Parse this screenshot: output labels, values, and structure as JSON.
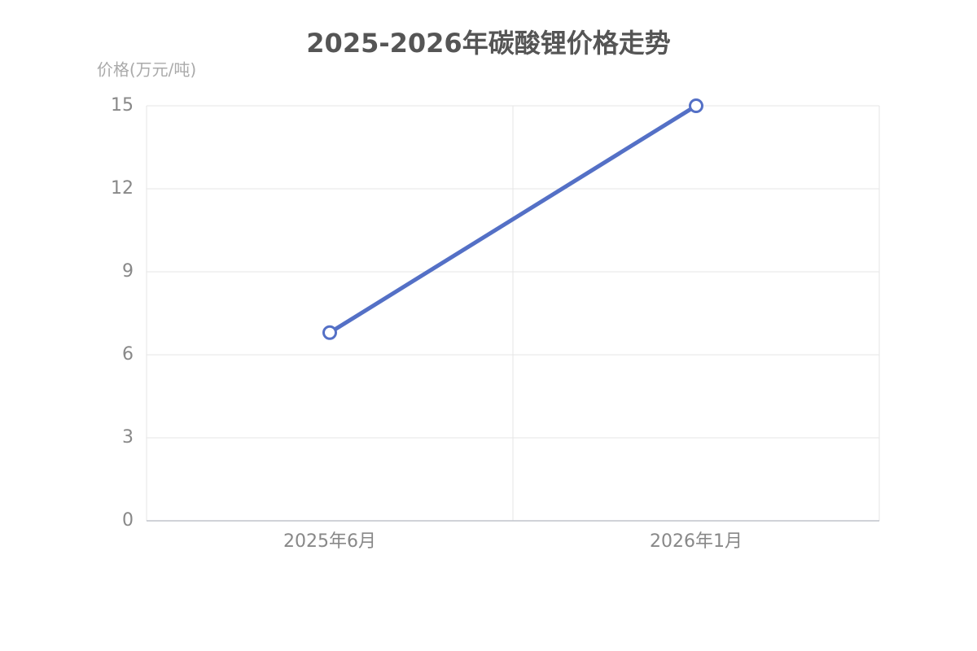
{
  "chart_data": {
    "type": "line",
    "title": "2025-2026年碳酸锂价格走势",
    "y_label": "价格(万元/吨)",
    "categories": [
      "2025年6月",
      "2026年1月"
    ],
    "values": [
      6.8,
      15
    ],
    "color": "#5470c6",
    "ylim": [
      0,
      15
    ],
    "yticks": [
      0,
      3,
      6,
      9,
      12,
      15
    ],
    "grid": true
  }
}
